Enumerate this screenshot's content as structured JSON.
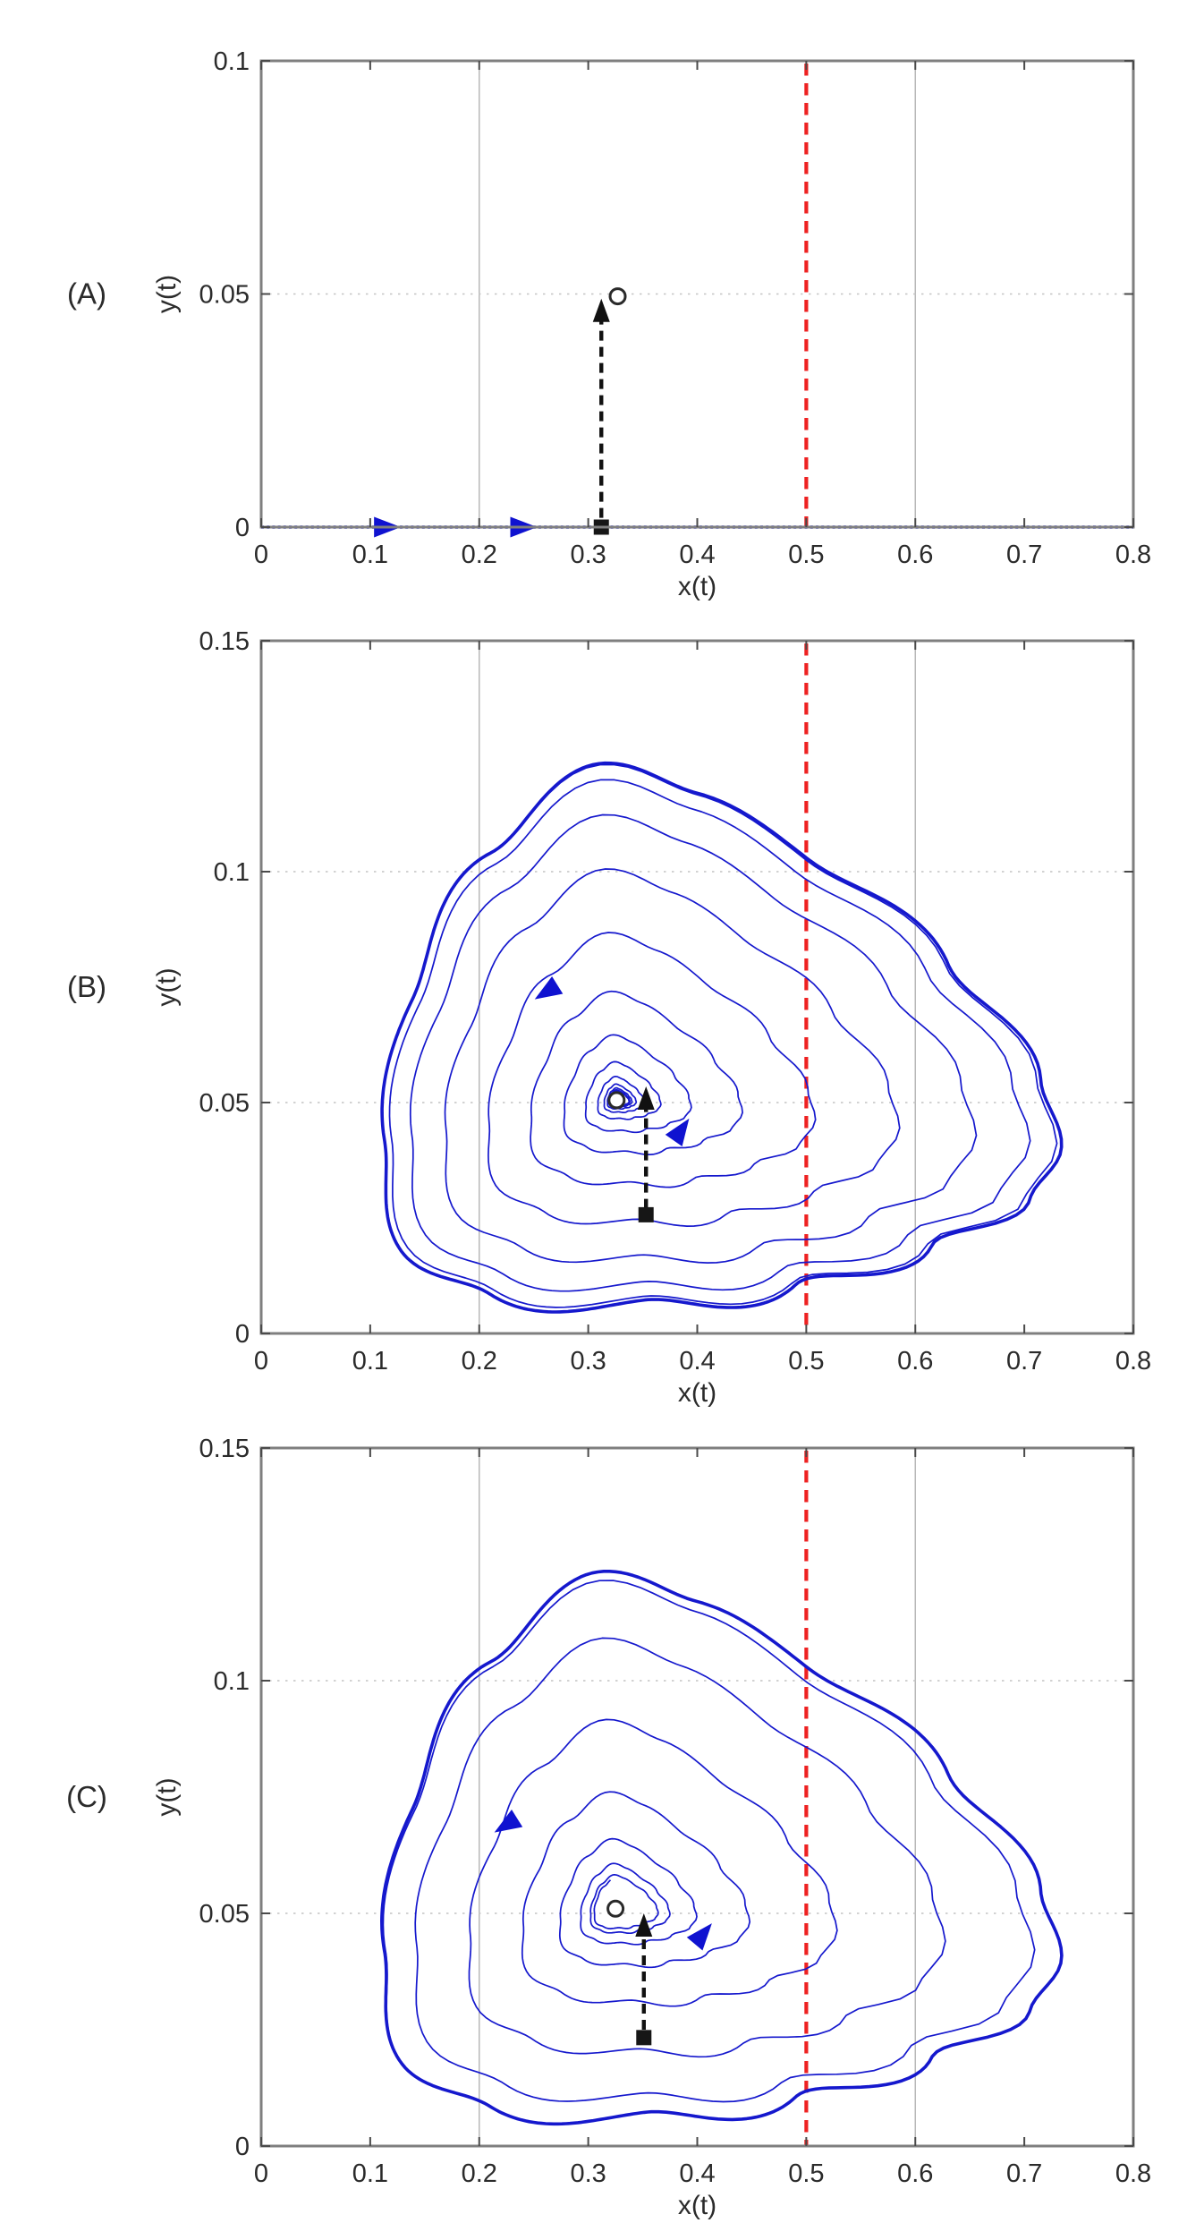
{
  "figure_description": "Three stacked phase-plane plots (A, B, C) of a predator-prey style system: y(t) versus x(t). Panel A shows a trajectory along y=0; panels B and C show counterclockwise spirals growing from an unstable focus (open circle) onto a rounded-triangular limit cycle. A black dashed arrow marks a perturbation from a start point (filled square) toward the equilibrium, and a red dashed vertical line marks x=0.5.",
  "chart_data": {
    "type": "line",
    "figure_kind": "phase_portrait_triptych",
    "colors": {
      "trajectory_blue": "#1518cd",
      "red_dashed_line": "#ee2222",
      "axis_border": "#7f7f7f",
      "grid_vline": "#b8b8b8",
      "grid_hline_dotted": "#c4c4c4",
      "annotation_black": "#111111"
    },
    "panels": [
      {
        "panel_label": "(A)",
        "xlabel": "x(t)",
        "ylabel": "y(t)",
        "xlim": [
          0,
          0.8
        ],
        "ylim": [
          0,
          0.1
        ],
        "xticks": [
          0,
          0.1,
          0.2,
          0.3,
          0.4,
          0.5,
          0.6,
          0.7,
          0.8
        ],
        "xtick_labels": [
          "0",
          "0.1",
          "0.2",
          "0.3",
          "0.4",
          "0.5",
          "0.6",
          "0.7",
          "0.8"
        ],
        "yticks": [
          0,
          0.05,
          0.1
        ],
        "ytick_labels": [
          "0",
          "0.05",
          "0.1"
        ],
        "grid_vlines_x": [
          0.2,
          0.6
        ],
        "grid_hlines_dotted_y": [
          0.05
        ],
        "red_dashed_vline_x": 0.5,
        "trajectory": {
          "kind": "horizontal_line",
          "y": 0,
          "x_range": [
            0,
            0.8
          ]
        },
        "flow_arrows": [
          {
            "x": 0.115,
            "y": 0,
            "dir_deg": 0
          },
          {
            "x": 0.24,
            "y": 0,
            "dir_deg": 0
          }
        ],
        "start_point_square": [
          0.312,
          0
        ],
        "perturbation_arrow": {
          "from": [
            0.312,
            0.002
          ],
          "tip": [
            0.312,
            0.049
          ]
        },
        "equilibrium_circle": [
          0.327,
          0.0495
        ]
      },
      {
        "panel_label": "(B)",
        "xlabel": "x(t)",
        "ylabel": "y(t)",
        "xlim": [
          0,
          0.8
        ],
        "ylim": [
          0,
          0.15
        ],
        "xticks": [
          0,
          0.1,
          0.2,
          0.3,
          0.4,
          0.5,
          0.6,
          0.7,
          0.8
        ],
        "xtick_labels": [
          "0",
          "0.1",
          "0.2",
          "0.3",
          "0.4",
          "0.5",
          "0.6",
          "0.7",
          "0.8"
        ],
        "yticks": [
          0,
          0.05,
          0.1,
          0.15
        ],
        "ytick_labels": [
          "0",
          "0.05",
          "0.1",
          "0.15"
        ],
        "grid_vlines_x": [
          0.2,
          0.6
        ],
        "grid_hlines_dotted_y": [
          0.05,
          0.1
        ],
        "red_dashed_vline_x": 0.5,
        "trajectory": {
          "kind": "spiral_to_limit_cycle",
          "center": [
            0.326,
            0.0505
          ],
          "turns": 13.4,
          "inner_scale": 0.028,
          "shape_a": 2.0,
          "start_angle_deg": 100
        },
        "limit_cycle": [
          [
            0.315,
            0.1235
          ],
          [
            0.21,
            0.104
          ],
          [
            0.138,
            0.072
          ],
          [
            0.113,
            0.042
          ],
          [
            0.128,
            0.018
          ],
          [
            0.21,
            0.0085
          ],
          [
            0.35,
            0.0072
          ],
          [
            0.49,
            0.0105
          ],
          [
            0.615,
            0.019
          ],
          [
            0.705,
            0.029
          ],
          [
            0.734,
            0.04
          ],
          [
            0.715,
            0.055
          ],
          [
            0.63,
            0.08
          ],
          [
            0.5,
            0.103
          ],
          [
            0.4,
            0.117
          ]
        ],
        "flow_arrows": [
          {
            "x": 0.262,
            "y": 0.074,
            "dir_deg": 212
          },
          {
            "x": 0.385,
            "y": 0.044,
            "dir_deg": 55
          }
        ],
        "start_point_square": [
          0.353,
          0.0257
        ],
        "perturbation_arrow": {
          "from": [
            0.353,
            0.027
          ],
          "tip": [
            0.353,
            0.0535
          ]
        },
        "equilibrium_circle": [
          0.326,
          0.0505
        ]
      },
      {
        "panel_label": "(C)",
        "xlabel": "x(t)",
        "ylabel": "y(t)",
        "xlim": [
          0,
          0.8
        ],
        "ylim": [
          0,
          0.15
        ],
        "xticks": [
          0,
          0.1,
          0.2,
          0.3,
          0.4,
          0.5,
          0.6,
          0.7,
          0.8
        ],
        "xtick_labels": [
          "0",
          "0.1",
          "0.2",
          "0.3",
          "0.4",
          "0.5",
          "0.6",
          "0.7",
          "0.8"
        ],
        "yticks": [
          0,
          0.05,
          0.1,
          0.15
        ],
        "ytick_labels": [
          "0",
          "0.05",
          "0.1",
          "0.15"
        ],
        "grid_vlines_x": [
          0.2,
          0.6
        ],
        "grid_hlines_dotted_y": [
          0.05,
          0.1
        ],
        "red_dashed_vline_x": 0.5,
        "trajectory": {
          "kind": "spiral_to_limit_cycle",
          "center": [
            0.325,
            0.051
          ],
          "turns": 7.4,
          "inner_scale": 0.09,
          "shape_a": 1.6,
          "start_angle_deg": 100
        },
        "limit_cycle": [
          [
            0.315,
            0.1235
          ],
          [
            0.21,
            0.104
          ],
          [
            0.138,
            0.072
          ],
          [
            0.113,
            0.042
          ],
          [
            0.128,
            0.018
          ],
          [
            0.21,
            0.0085
          ],
          [
            0.35,
            0.0072
          ],
          [
            0.49,
            0.0105
          ],
          [
            0.615,
            0.019
          ],
          [
            0.705,
            0.029
          ],
          [
            0.734,
            0.04
          ],
          [
            0.715,
            0.055
          ],
          [
            0.63,
            0.08
          ],
          [
            0.5,
            0.103
          ],
          [
            0.4,
            0.117
          ]
        ],
        "flow_arrows": [
          {
            "x": 0.225,
            "y": 0.069,
            "dir_deg": 212
          },
          {
            "x": 0.405,
            "y": 0.0455,
            "dir_deg": 50
          }
        ],
        "start_point_square": [
          0.351,
          0.0233
        ],
        "perturbation_arrow": {
          "from": [
            0.351,
            0.025
          ],
          "tip": [
            0.351,
            0.05
          ]
        },
        "equilibrium_circle": [
          0.325,
          0.051
        ]
      }
    ]
  }
}
